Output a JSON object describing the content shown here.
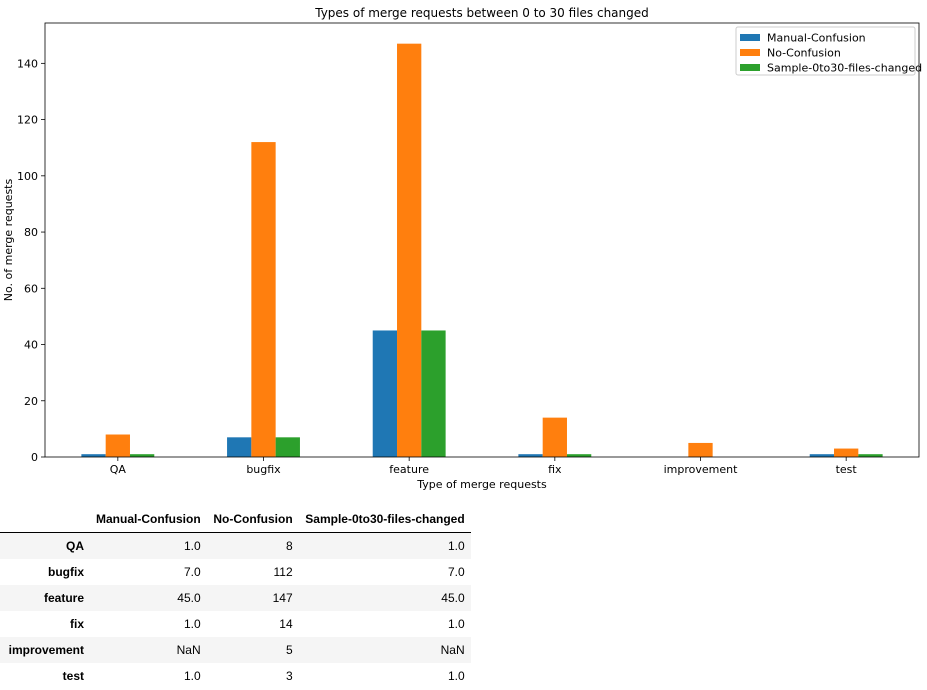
{
  "chart_data": {
    "type": "bar",
    "title": "Types of merge requests between 0 to 30 files changed",
    "xlabel": "Type of merge requests",
    "ylabel": "No. of merge requests",
    "categories": [
      "QA",
      "bugfix",
      "feature",
      "fix",
      "improvement",
      "test"
    ],
    "series": [
      {
        "name": "Manual-Confusion",
        "color": "#1f77b4",
        "values": [
          1,
          7,
          45,
          1,
          null,
          1
        ]
      },
      {
        "name": "No-Confusion",
        "color": "#ff7f0e",
        "values": [
          8,
          112,
          147,
          14,
          5,
          3
        ]
      },
      {
        "name": "Sample-0to30-files-changed",
        "color": "#2ca02c",
        "values": [
          1,
          7,
          45,
          1,
          null,
          1
        ]
      }
    ],
    "ylim": [
      0,
      154.35
    ],
    "yticks": [
      0,
      20,
      40,
      60,
      80,
      100,
      120,
      140
    ],
    "grid": false,
    "legend_position": "top-right"
  },
  "table": {
    "columns": [
      "Manual-Confusion",
      "No-Confusion",
      "Sample-0to30-files-changed"
    ],
    "rows": [
      {
        "label": "QA",
        "cells": [
          "1.0",
          "8",
          "1.0"
        ]
      },
      {
        "label": "bugfix",
        "cells": [
          "7.0",
          "112",
          "7.0"
        ]
      },
      {
        "label": "feature",
        "cells": [
          "45.0",
          "147",
          "45.0"
        ]
      },
      {
        "label": "fix",
        "cells": [
          "1.0",
          "14",
          "1.0"
        ]
      },
      {
        "label": "improvement",
        "cells": [
          "NaN",
          "5",
          "NaN"
        ]
      },
      {
        "label": "test",
        "cells": [
          "1.0",
          "3",
          "1.0"
        ]
      }
    ]
  }
}
